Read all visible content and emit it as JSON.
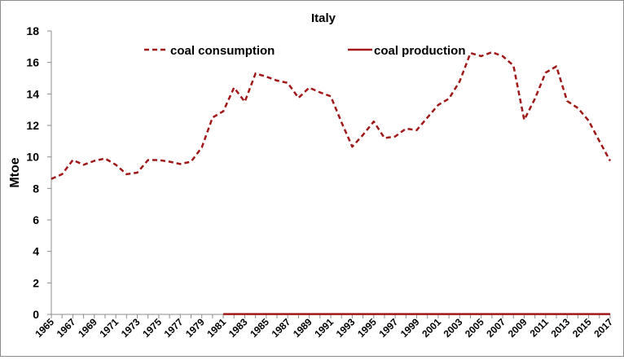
{
  "chart_data": {
    "type": "line",
    "title": "Italy",
    "xlabel": "",
    "ylabel": "Mtoe",
    "ylim": [
      0,
      18
    ],
    "yticks": [
      "0",
      "2",
      "4",
      "6",
      "8",
      "10",
      "12",
      "14",
      "16",
      "18"
    ],
    "x": [
      1965,
      1966,
      1967,
      1968,
      1969,
      1970,
      1971,
      1972,
      1973,
      1974,
      1975,
      1976,
      1977,
      1978,
      1979,
      1980,
      1981,
      1982,
      1983,
      1984,
      1985,
      1986,
      1987,
      1988,
      1989,
      1990,
      1991,
      1992,
      1993,
      1994,
      1995,
      1996,
      1997,
      1998,
      1999,
      2000,
      2001,
      2002,
      2003,
      2004,
      2005,
      2006,
      2007,
      2008,
      2009,
      2010,
      2011,
      2012,
      2013,
      2014,
      2015,
      2016,
      2017
    ],
    "xtick_labels": [
      "1965",
      "1967",
      "1969",
      "1971",
      "1973",
      "1975",
      "1977",
      "1979",
      "1981",
      "1983",
      "1985",
      "1987",
      "1989",
      "1991",
      "1993",
      "1995",
      "1997",
      "1999",
      "2001",
      "2003",
      "2005",
      "2007",
      "2009",
      "2011",
      "2013",
      "2015",
      "2017"
    ],
    "grid": false,
    "legend_position": "top",
    "series": [
      {
        "name": "coal consumption",
        "style": "dashed",
        "color": "#A01818",
        "x": [
          1965,
          1966,
          1967,
          1968,
          1969,
          1970,
          1971,
          1972,
          1973,
          1974,
          1975,
          1976,
          1977,
          1978,
          1979,
          1980,
          1981,
          1982,
          1983,
          1984,
          1985,
          1986,
          1987,
          1988,
          1989,
          1990,
          1991,
          1992,
          1993,
          1994,
          1995,
          1996,
          1997,
          1998,
          1999,
          2000,
          2001,
          2002,
          2003,
          2004,
          2005,
          2006,
          2007,
          2008,
          2009,
          2010,
          2011,
          2012,
          2013,
          2014,
          2015,
          2016,
          2017
        ],
        "values": [
          8.6,
          8.9,
          9.8,
          9.5,
          9.75,
          9.9,
          9.5,
          8.9,
          9.0,
          9.8,
          9.8,
          9.7,
          9.55,
          9.7,
          10.6,
          12.5,
          12.9,
          14.4,
          13.5,
          15.3,
          15.1,
          14.85,
          14.7,
          13.75,
          14.4,
          14.1,
          13.85,
          12.2,
          10.65,
          11.4,
          12.25,
          11.2,
          11.3,
          11.8,
          11.7,
          12.5,
          13.3,
          13.7,
          14.8,
          16.6,
          16.4,
          16.65,
          16.4,
          15.8,
          12.35,
          13.7,
          15.35,
          15.75,
          13.55,
          13.1,
          12.3,
          11.0,
          9.75
        ]
      },
      {
        "name": "coal production",
        "style": "solid",
        "color": "#A01818",
        "x": [
          1981,
          1982,
          1983,
          1984,
          1985,
          1986,
          1987,
          1988,
          1989,
          1990,
          1991,
          1992,
          1993,
          1994,
          1995,
          1996,
          1997,
          1998,
          1999,
          2000,
          2001,
          2002,
          2003,
          2004,
          2005,
          2006,
          2007,
          2008,
          2009,
          2010,
          2011,
          2012,
          2013,
          2014,
          2015,
          2016,
          2017
        ],
        "values": [
          0.02,
          0.02,
          0.02,
          0.02,
          0.02,
          0.02,
          0.02,
          0.02,
          0.02,
          0.02,
          0.02,
          0.02,
          0.02,
          0.02,
          0.02,
          0.02,
          0.02,
          0.02,
          0.02,
          0.02,
          0.02,
          0.02,
          0.02,
          0.02,
          0.02,
          0.02,
          0.02,
          0.02,
          0.02,
          0.02,
          0.02,
          0.02,
          0.02,
          0.02,
          0.02,
          0.02,
          0.02
        ]
      }
    ]
  }
}
